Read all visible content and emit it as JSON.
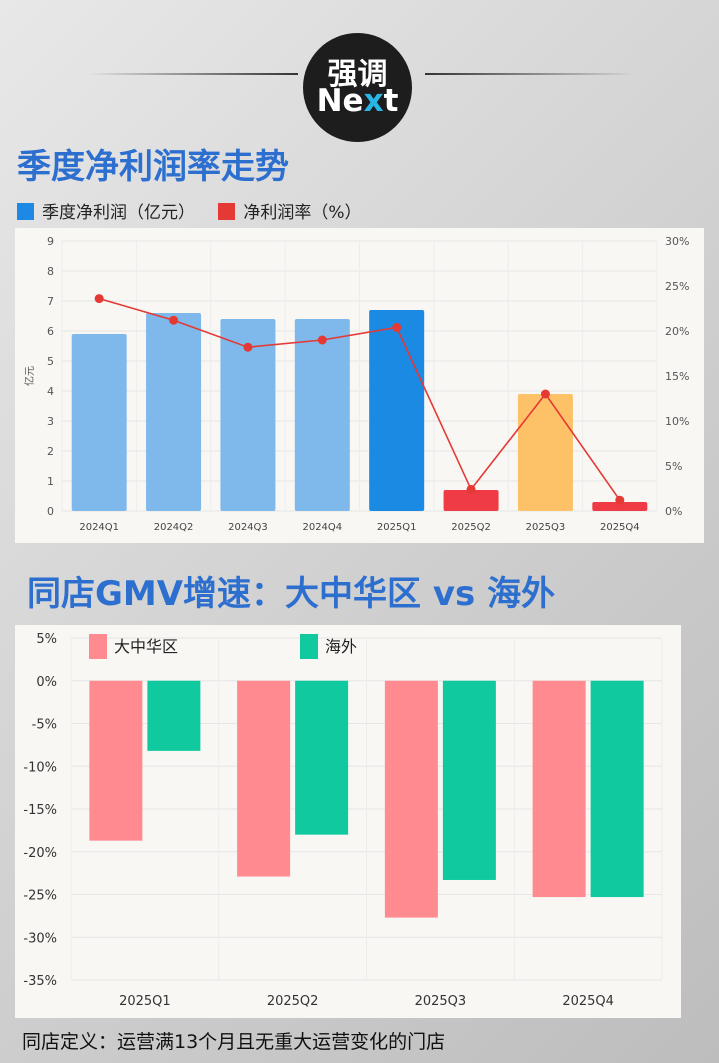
{
  "logo": {
    "line1": "强调",
    "line2_pre": "Ne",
    "line2_x": "x",
    "line2_post": "t"
  },
  "chart1": {
    "title": "季度净利润率走势",
    "legend": [
      {
        "label": "季度净利润（亿元）",
        "color": "#1e88e5"
      },
      {
        "label": "净利润率（%）",
        "color": "#e53935"
      }
    ]
  },
  "chart2": {
    "title": "同店GMV增速：大中华区 vs 海外"
  },
  "footnote": "同店定义：运营满13个月且无重大运营变化的门店",
  "chart_data": [
    {
      "type": "bar",
      "title": "季度净利润率走势",
      "categories": [
        "2024Q1",
        "2024Q2",
        "2024Q3",
        "2024Q4",
        "2025Q1",
        "2025Q2",
        "2025Q3",
        "2025Q4"
      ],
      "series": [
        {
          "name": "季度净利润（亿元）",
          "axis": "left",
          "values": [
            5.9,
            6.6,
            6.4,
            6.4,
            6.7,
            0.7,
            3.9,
            0.3
          ],
          "colors": [
            "#7fb8ea",
            "#7fb8ea",
            "#7fb8ea",
            "#7fb8ea",
            "#1a8ae3",
            "#ef3b45",
            "#fdc267",
            "#ef3b45"
          ]
        },
        {
          "name": "净利润率（%）",
          "axis": "right",
          "type": "line",
          "color": "#e53935",
          "values": [
            23.6,
            21.2,
            18.2,
            19.0,
            20.4,
            2.4,
            13.0,
            1.2
          ]
        }
      ],
      "ylabel": "亿元",
      "ylim": [
        0,
        9
      ],
      "y_ticks": [
        "0",
        "1",
        "2",
        "3",
        "4",
        "5",
        "6",
        "7",
        "8",
        "9"
      ],
      "y2lim": [
        0,
        30
      ],
      "y2_ticks": [
        "0%",
        "5%",
        "10%",
        "15%",
        "20%",
        "25%",
        "30%"
      ],
      "grid": true
    },
    {
      "type": "bar",
      "title": "同店GMV增速：大中华区 vs 海外",
      "categories": [
        "2025Q1",
        "2025Q2",
        "2025Q3",
        "2025Q4"
      ],
      "series": [
        {
          "name": "大中华区",
          "color": "#ff8a8f",
          "values": [
            -18.7,
            -22.9,
            -27.7,
            -25.3
          ]
        },
        {
          "name": "海外",
          "color": "#10c99e",
          "values": [
            -8.2,
            -18.0,
            -23.3,
            -25.3
          ]
        }
      ],
      "ylim": [
        -35,
        5
      ],
      "y_ticks": [
        "5%",
        "0%",
        "-5%",
        "-10%",
        "-15%",
        "-20%",
        "-25%",
        "-30%",
        "-35%"
      ],
      "grid": true,
      "legend": "top-left"
    }
  ]
}
